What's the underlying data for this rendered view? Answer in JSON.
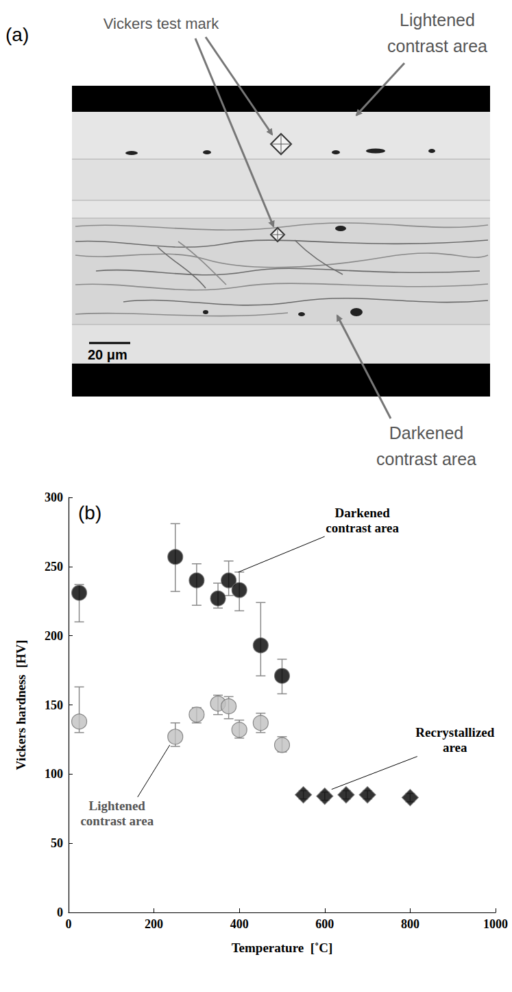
{
  "micrograph": {
    "title": "(a)",
    "vickers_label": "Vickers test mark",
    "light_label": "Lightened contrast area",
    "dark_label": "Darkened contrast area",
    "scale_bar": "20 μm"
  },
  "chart_data": {
    "type": "scatter",
    "title": "(b)",
    "x_label": "Temperature  [˚C]",
    "y_label": "Vickers hardness  [HV]",
    "xlim": [
      0,
      1000
    ],
    "xticks": [
      0,
      200,
      400,
      600,
      800,
      1000
    ],
    "ylim": [
      0,
      300
    ],
    "yticks": [
      0,
      50,
      100,
      150,
      200,
      250,
      300
    ],
    "grid": false,
    "series": [
      {
        "name": "Darkened contrast area",
        "color": "#000000",
        "marker": "circle",
        "x": [
          25,
          250,
          300,
          350,
          375,
          400,
          450,
          500
        ],
        "values": [
          231,
          257,
          240,
          227,
          240,
          233,
          193,
          171
        ],
        "error_bar_low": [
          210,
          232,
          222,
          220,
          229,
          218,
          171,
          158
        ],
        "error_bar_high": [
          237,
          281,
          252,
          238,
          254,
          246,
          224,
          183
        ]
      },
      {
        "name": "Lightened contrast area",
        "color": "#c0c0c0",
        "marker": "circle",
        "x": [
          25,
          250,
          300,
          350,
          375,
          400,
          450,
          500
        ],
        "values": [
          138,
          127,
          143,
          151,
          149,
          132,
          137,
          121
        ],
        "error_bar_low": [
          130,
          120,
          137,
          143,
          140,
          126,
          130,
          116
        ],
        "error_bar_high": [
          163,
          137,
          148,
          157,
          156,
          139,
          144,
          127
        ]
      },
      {
        "name": "Recrystallized area",
        "color": "#000000",
        "marker": "diamond",
        "x": [
          550,
          600,
          650,
          700,
          800
        ],
        "values": [
          85,
          84,
          85,
          85,
          83
        ],
        "error_bar_low": [
          82,
          81,
          82,
          82,
          80
        ],
        "error_bar_high": [
          88,
          87,
          88,
          88,
          86
        ]
      }
    ]
  }
}
